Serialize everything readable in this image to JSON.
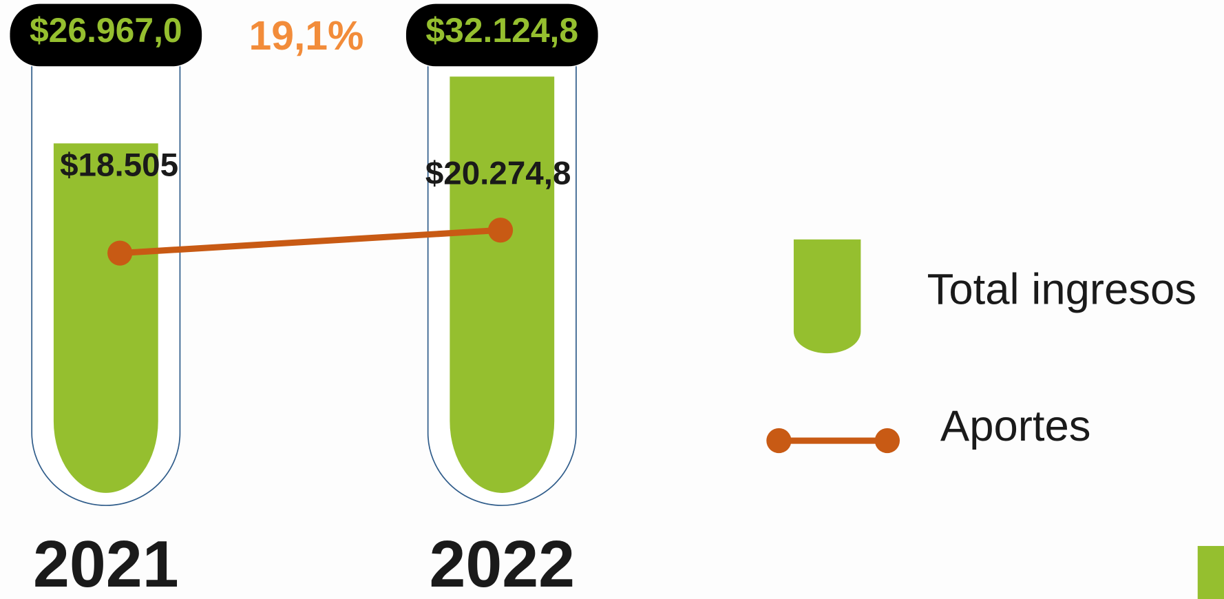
{
  "chart_data": {
    "type": "tube-bar-line",
    "annotation": "19,1%",
    "categories": [
      "2021",
      "2022"
    ],
    "ylim": [
      0,
      34000
    ],
    "series": [
      {
        "name": "Total ingresos",
        "color": "#95bf2f",
        "values": [
          26967.0,
          32124.8
        ],
        "value_labels": [
          "$26.967,0",
          "$32.124,8"
        ]
      },
      {
        "name": "Aportes",
        "color": "#c85a14",
        "values": [
          18505,
          20274.8
        ],
        "value_labels": [
          "$18.505",
          "$20.274,8"
        ]
      }
    ]
  }
}
